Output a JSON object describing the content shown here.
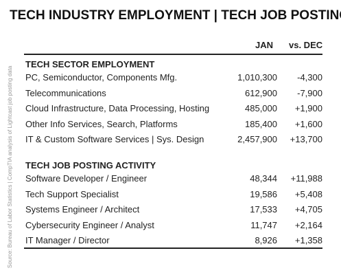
{
  "title": "TECH INDUSTRY EMPLOYMENT | TECH JOB POSTINGS",
  "source": "Source: Bureau of Labor Statistics | CompTIA analysis of Lightcast job posting data",
  "columns": [
    "JAN",
    "vs. DEC"
  ],
  "sections": [
    {
      "heading": "TECH SECTOR EMPLOYMENT",
      "rows": [
        [
          "PC, Semiconductor, Components Mfg.",
          "1,010,300",
          "-4,300"
        ],
        [
          "Telecommunications",
          "612,900",
          "-7,900"
        ],
        [
          "Cloud Infrastructure, Data Processing, Hosting",
          "485,000",
          "+1,900"
        ],
        [
          "Other Info Services, Search, Platforms",
          "185,400",
          "+1,600"
        ],
        [
          "IT & Custom Software Services | Sys. Design",
          "2,457,900",
          "+13,700"
        ]
      ]
    },
    {
      "heading": "TECH JOB POSTING ACTIVITY",
      "rows": [
        [
          "Software Developer / Engineer",
          "48,344",
          "+11,988"
        ],
        [
          "Tech Support Specialist",
          "19,586",
          "+5,408"
        ],
        [
          "Systems Engineer / Architect",
          "17,533",
          "+4,705"
        ],
        [
          "Cybersecurity Engineer / Analyst",
          "11,747",
          "+2,164"
        ],
        [
          "IT Manager / Director",
          "8,926",
          "+1,358"
        ]
      ]
    }
  ]
}
